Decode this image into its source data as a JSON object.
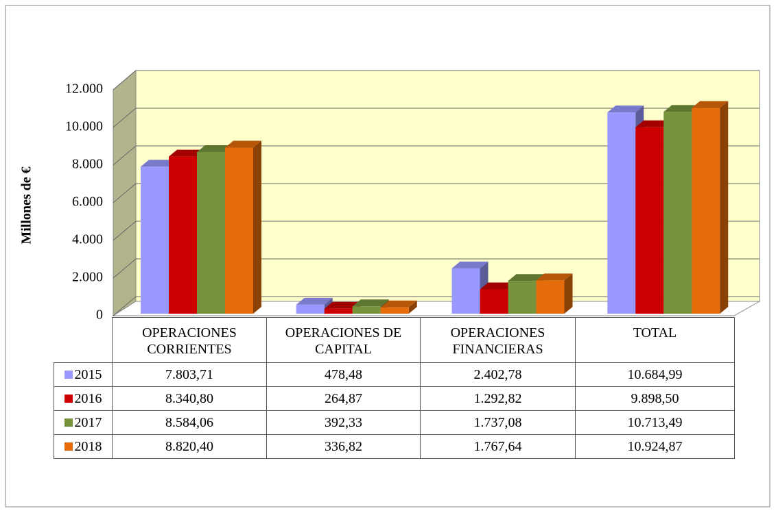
{
  "chart_data": {
    "type": "bar3d",
    "y_axis_label": "Millones de €",
    "categories": [
      "OPERACIONES CORRIENTES",
      "OPERACIONES DE CAPITAL",
      "OPERACIONES FINANCIERAS",
      "TOTAL"
    ],
    "series": [
      {
        "name": "2015",
        "color": "#9999ff",
        "values": [
          7803.71,
          478.48,
          2402.78,
          10684.99
        ],
        "value_labels": [
          "7.803,71",
          "478,48",
          "2.402,78",
          "10.684,99"
        ]
      },
      {
        "name": "2016",
        "color": "#cc0000",
        "values": [
          8340.8,
          264.87,
          1292.82,
          9898.5
        ],
        "value_labels": [
          "8.340,80",
          "264,87",
          "1.292,82",
          "9.898,50"
        ]
      },
      {
        "name": "2017",
        "color": "#77933c",
        "values": [
          8584.06,
          392.33,
          1737.08,
          10713.49
        ],
        "value_labels": [
          "8.584,06",
          "392,33",
          "1.737,08",
          "10.713,49"
        ]
      },
      {
        "name": "2018",
        "color": "#e46c0a",
        "values": [
          8820.4,
          336.82,
          1767.64,
          10924.87
        ],
        "value_labels": [
          "8.820,40",
          "336,82",
          "1.767,64",
          "10.924,87"
        ]
      }
    ],
    "ylim": [
      0,
      12000
    ],
    "yticks": [
      0,
      {
        "value": 2000,
        "label": "2.000"
      },
      {
        "value": 4000,
        "label": "4.000"
      },
      {
        "value": 6000,
        "label": "6.000"
      },
      {
        "value": 8000,
        "label": "8.000"
      },
      {
        "value": 10000,
        "label": "10.000"
      },
      {
        "value": 12000,
        "label": "12.000"
      }
    ],
    "grid": true
  }
}
